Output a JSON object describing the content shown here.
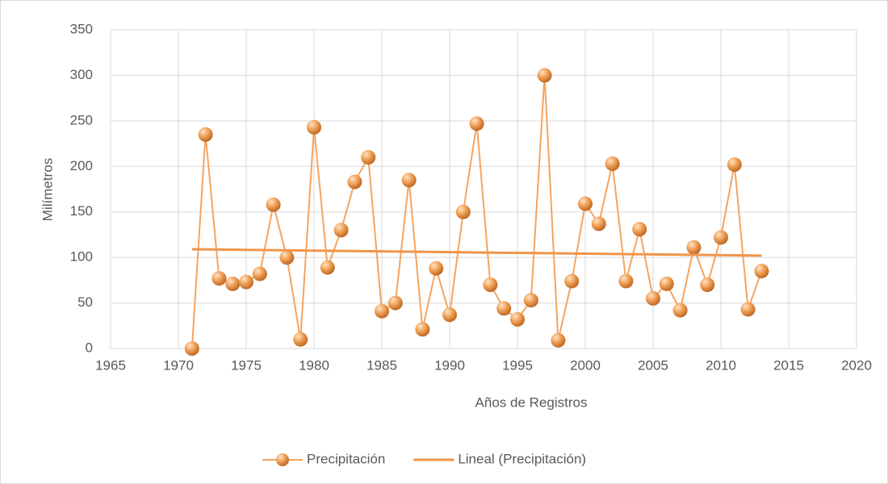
{
  "chart_data": {
    "type": "scatter-line",
    "x_label": "Años de Registros",
    "y_label": "Milímetros",
    "xlim": [
      1965,
      2020
    ],
    "xticks": [
      1965,
      1970,
      1975,
      1980,
      1985,
      1990,
      1995,
      2000,
      2005,
      2010,
      2015,
      2020
    ],
    "ylim": [
      0,
      350
    ],
    "yticks": [
      0,
      50,
      100,
      150,
      200,
      250,
      300,
      350
    ],
    "grid": true,
    "legend": "bottom",
    "series": [
      {
        "name": "Precipitación",
        "color": "#f4a460",
        "markers": true,
        "x": [
          1971,
          1972,
          1973,
          1974,
          1975,
          1976,
          1977,
          1978,
          1979,
          1980,
          1981,
          1982,
          1983,
          1984,
          1985,
          1986,
          1987,
          1988,
          1989,
          1990,
          1991,
          1992,
          1993,
          1994,
          1995,
          1996,
          1997,
          1998,
          1999,
          2000,
          2001,
          2002,
          2003,
          2004,
          2005,
          2006,
          2007,
          2008,
          2009,
          2010,
          2011,
          2012,
          2013
        ],
        "values": [
          0,
          235,
          77,
          71,
          73,
          82,
          158,
          100,
          10,
          243,
          89,
          130,
          183,
          210,
          41,
          50,
          185,
          21,
          88,
          37,
          150,
          247,
          70,
          44,
          32,
          53,
          300,
          9,
          74,
          159,
          137,
          203,
          74,
          131,
          55,
          71,
          42,
          111,
          70,
          122,
          202,
          43,
          85
        ]
      },
      {
        "name": "Lineal (Precipitación)",
        "color": "#f0954a",
        "markers": false,
        "x": [
          1971,
          2013
        ],
        "values": [
          109,
          102
        ]
      }
    ]
  }
}
